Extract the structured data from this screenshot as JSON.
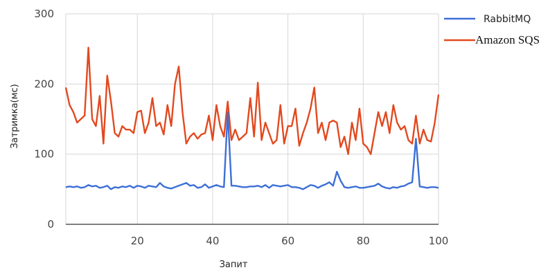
{
  "chart_data": {
    "type": "line",
    "xlabel": "Запит",
    "ylabel": "Затримка(мс)",
    "xlim": [
      1,
      100
    ],
    "ylim": [
      0,
      300
    ],
    "x_ticks": [
      20,
      40,
      60,
      80,
      100
    ],
    "y_ticks": [
      0,
      100,
      200,
      300
    ],
    "grid": true,
    "legend_position": "top-right",
    "series": [
      {
        "name": "RabbitMQ",
        "color": "#3c6fd6",
        "values": [
          53,
          54,
          53,
          54,
          52,
          53,
          56,
          54,
          55,
          52,
          53,
          55,
          50,
          53,
          52,
          54,
          53,
          55,
          52,
          55,
          54,
          52,
          55,
          54,
          53,
          59,
          54,
          52,
          51,
          53,
          55,
          57,
          59,
          55,
          56,
          52,
          53,
          57,
          52,
          54,
          56,
          54,
          53,
          160,
          55,
          55,
          54,
          53,
          53,
          54,
          54,
          55,
          53,
          56,
          52,
          56,
          55,
          54,
          55,
          56,
          53,
          53,
          52,
          50,
          53,
          56,
          55,
          52,
          55,
          57,
          60,
          55,
          75,
          62,
          53,
          52,
          53,
          54,
          52,
          52,
          53,
          54,
          55,
          58,
          54,
          52,
          51,
          53,
          52,
          54,
          55,
          58,
          60,
          122,
          54,
          53,
          52,
          53,
          53,
          52
        ]
      },
      {
        "name": "Amazon SQS",
        "color": "#e2491e",
        "values": [
          195,
          170,
          160,
          145,
          150,
          155,
          252,
          150,
          140,
          183,
          115,
          212,
          175,
          130,
          125,
          140,
          135,
          135,
          130,
          160,
          162,
          130,
          145,
          180,
          140,
          145,
          128,
          170,
          140,
          200,
          225,
          160,
          115,
          125,
          130,
          122,
          128,
          130,
          155,
          120,
          170,
          140,
          125,
          175,
          120,
          135,
          120,
          125,
          130,
          180,
          125,
          202,
          120,
          145,
          130,
          115,
          120,
          170,
          115,
          140,
          140,
          165,
          112,
          130,
          145,
          165,
          195,
          130,
          145,
          120,
          145,
          148,
          145,
          110,
          125,
          100,
          145,
          120,
          165,
          115,
          110,
          100,
          130,
          160,
          140,
          160,
          130,
          170,
          145,
          135,
          140,
          120,
          115,
          155,
          115,
          135,
          120,
          118,
          145,
          185
        ]
      }
    ]
  }
}
